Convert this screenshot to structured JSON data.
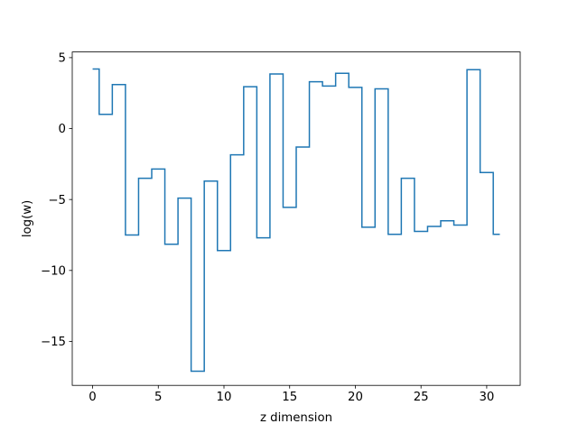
{
  "chart_data": {
    "type": "line",
    "drawstyle": "steps-mid",
    "title": "",
    "xlabel": "z dimension",
    "ylabel": "log(w)",
    "xlim": [
      -1.55,
      32.55
    ],
    "ylim": [
      -18.1,
      5.4
    ],
    "xticks": [
      0,
      5,
      10,
      15,
      20,
      25,
      30
    ],
    "yticks": [
      5,
      0,
      -5,
      -10,
      -15
    ],
    "xtick_labels": [
      "0",
      "5",
      "10",
      "15",
      "20",
      "25",
      "30"
    ],
    "ytick_labels": [
      "5",
      "0",
      "−5",
      "−10",
      "−15"
    ],
    "grid": false,
    "legend": "none",
    "series": [
      {
        "color": "#1f77b4",
        "x": [
          0,
          1,
          2,
          3,
          4,
          5,
          6,
          7,
          8,
          9,
          10,
          11,
          12,
          13,
          14,
          15,
          16,
          17,
          18,
          19,
          20,
          21,
          22,
          23,
          24,
          25,
          26,
          27,
          28,
          29,
          30,
          31
        ],
        "y": [
          4.2,
          1.0,
          3.1,
          -7.5,
          -3.5,
          -2.85,
          -8.15,
          -4.9,
          -17.1,
          -3.7,
          -8.6,
          -1.85,
          2.95,
          -7.7,
          3.85,
          -5.55,
          -1.3,
          3.3,
          3.0,
          3.9,
          2.9,
          -6.95,
          2.8,
          -7.45,
          -3.5,
          -7.25,
          -6.9,
          -6.5,
          -6.8,
          4.15,
          -3.1,
          -7.45
        ]
      }
    ]
  }
}
